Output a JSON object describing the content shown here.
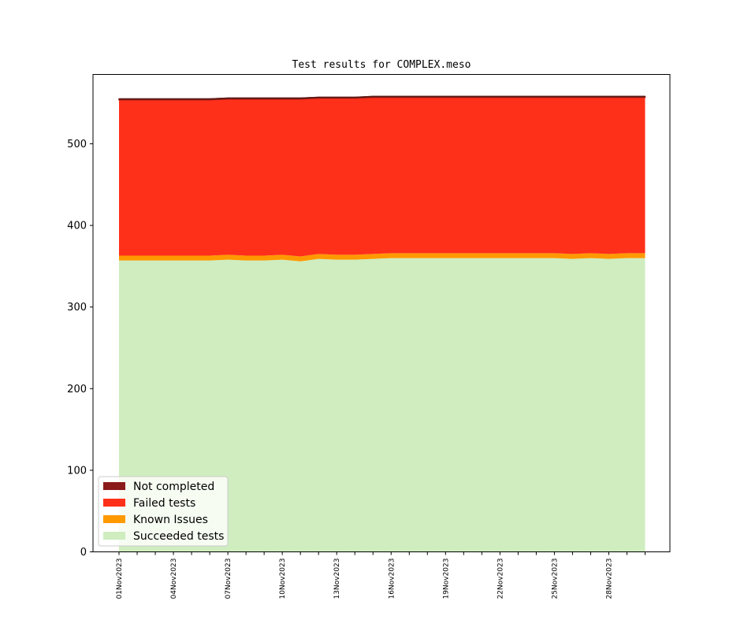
{
  "chart_data": {
    "type": "area",
    "title": "Test results for COMPLEX.meso",
    "xlabel": "",
    "ylabel": "",
    "ylim": [
      0,
      585
    ],
    "yticks": [
      0,
      100,
      200,
      300,
      400,
      500
    ],
    "x": [
      "01Nov2023",
      "02Nov2023",
      "03Nov2023",
      "04Nov2023",
      "05Nov2023",
      "06Nov2023",
      "07Nov2023",
      "08Nov2023",
      "09Nov2023",
      "10Nov2023",
      "11Nov2023",
      "12Nov2023",
      "13Nov2023",
      "14Nov2023",
      "15Nov2023",
      "16Nov2023",
      "17Nov2023",
      "18Nov2023",
      "19Nov2023",
      "20Nov2023",
      "21Nov2023",
      "22Nov2023",
      "23Nov2023",
      "24Nov2023",
      "25Nov2023",
      "26Nov2023",
      "27Nov2023",
      "28Nov2023",
      "29Nov2023",
      "30Nov2023"
    ],
    "xtick_labels": [
      "01Nov2023",
      "04Nov2023",
      "07Nov2023",
      "10Nov2023",
      "13Nov2023",
      "16Nov2023",
      "19Nov2023",
      "22Nov2023",
      "25Nov2023",
      "28Nov2023"
    ],
    "stacked": true,
    "series": [
      {
        "name": "Succeeded tests",
        "color": "#cfedbf",
        "values": [
          357,
          357,
          357,
          357,
          357,
          357,
          358,
          357,
          357,
          358,
          356,
          359,
          358,
          358,
          359,
          360,
          360,
          360,
          360,
          360,
          360,
          360,
          360,
          360,
          360,
          359,
          360,
          359,
          360,
          360
        ]
      },
      {
        "name": "Known Issues",
        "color": "#ff9900",
        "values": [
          6,
          6,
          6,
          6,
          6,
          6,
          6,
          6,
          6,
          6,
          6,
          6,
          6,
          6,
          6,
          6,
          6,
          6,
          6,
          6,
          6,
          6,
          6,
          6,
          6,
          6,
          6,
          6,
          6,
          6
        ]
      },
      {
        "name": "Failed tests",
        "color": "#ff3019",
        "values": [
          191,
          191,
          191,
          191,
          191,
          191,
          191,
          192,
          192,
          191,
          193,
          191,
          192,
          192,
          192,
          191,
          191,
          191,
          191,
          191,
          191,
          191,
          191,
          191,
          191,
          192,
          191,
          192,
          191,
          191
        ]
      },
      {
        "name": "Not completed",
        "color": "#8b1a1a",
        "values": [
          1,
          1,
          1,
          1,
          1,
          1,
          1,
          1,
          1,
          1,
          1,
          1,
          1,
          1,
          1,
          1,
          1,
          1,
          1,
          1,
          1,
          1,
          1,
          1,
          1,
          1,
          1,
          1,
          1,
          1
        ]
      }
    ],
    "legend": {
      "placement": "lower-left",
      "entries": [
        "Not completed",
        "Failed tests",
        "Known Issues",
        "Succeeded tests"
      ]
    },
    "grid": false
  }
}
